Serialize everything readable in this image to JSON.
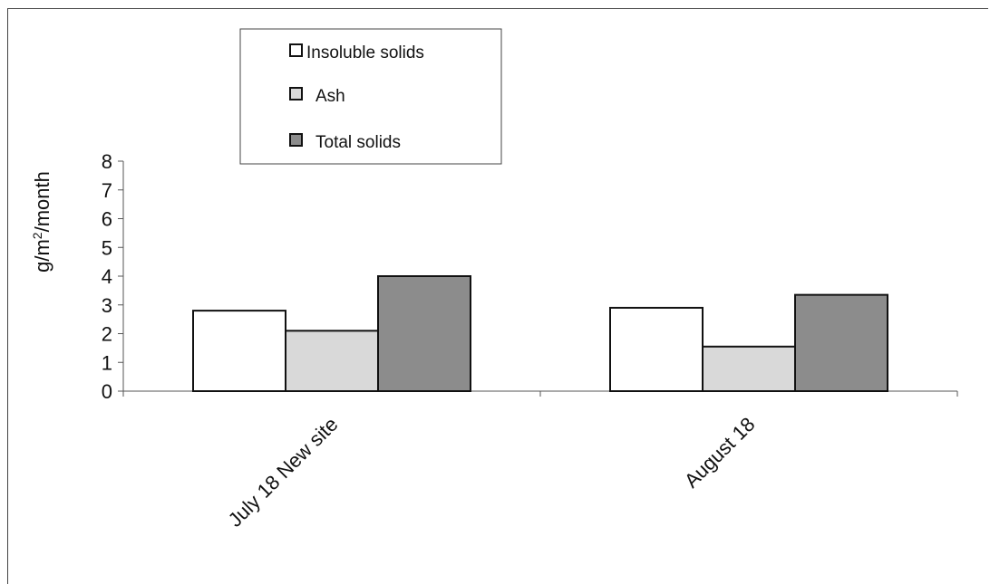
{
  "chart_data": {
    "type": "bar",
    "title": "",
    "xlabel": "",
    "ylabel": "g/m²/month",
    "ylabel_base": "g/m",
    "ylabel_sup": "2",
    "ylabel_tail": "/month",
    "ylim": [
      0,
      8
    ],
    "yticks": [
      "0",
      "1",
      "2",
      "3",
      "4",
      "5",
      "6",
      "7",
      "8"
    ],
    "categories": [
      "July 18 New site",
      "August 18"
    ],
    "series": [
      {
        "name": "Insoluble solids",
        "values": [
          2.8,
          2.9
        ],
        "color": "#ffffff"
      },
      {
        "name": "Ash",
        "values": [
          2.1,
          1.55
        ],
        "color": "#d9d9d9"
      },
      {
        "name": "Total solids",
        "values": [
          4.0,
          3.35
        ],
        "color": "#8c8c8c"
      }
    ],
    "legend_position": "top-center",
    "grid": false
  }
}
